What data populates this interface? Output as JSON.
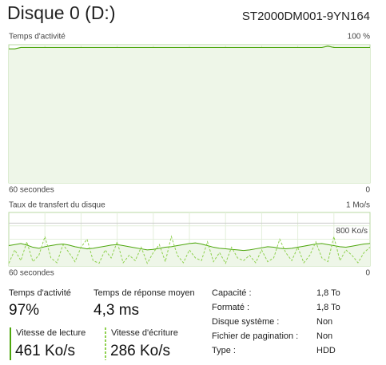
{
  "header": {
    "title": "Disque 0 (D:)",
    "model": "ST2000DM001-9YN164"
  },
  "activity_chart": {
    "type": "line",
    "label": "Temps d'activité",
    "max_label": "100 %",
    "x_label": "60 secondes",
    "x_end_label": "0",
    "ylim": [
      0,
      100
    ],
    "color": "#4da60c",
    "fill": "#eef6e8",
    "grid": true,
    "values": [
      97,
      97,
      98,
      98,
      98,
      98,
      98,
      98,
      98,
      98,
      98,
      98,
      98,
      98,
      98,
      98,
      98,
      98,
      98,
      98,
      98,
      98,
      98,
      98,
      98,
      98,
      98,
      98,
      98,
      98,
      98,
      98,
      98,
      98,
      98,
      98,
      98,
      98,
      98,
      98,
      98,
      98,
      98,
      98,
      98,
      98,
      98,
      98,
      98,
      98,
      98,
      98,
      98,
      99,
      98,
      98,
      98,
      98,
      98,
      98,
      98
    ]
  },
  "transfer_chart": {
    "type": "line",
    "label": "Taux de transfert du disque",
    "max_label": "1 Mo/s",
    "x_label": "60 secondes",
    "x_end_label": "0",
    "ylim": [
      0,
      1000
    ],
    "marker": {
      "value": 800,
      "label": "800 Ko/s"
    },
    "grid": true,
    "series": [
      {
        "name": "Vitesse de lecture",
        "color": "#4da60c",
        "values": [
          380,
          400,
          420,
          390,
          350,
          330,
          360,
          380,
          400,
          410,
          390,
          360,
          340,
          320,
          330,
          350,
          370,
          390,
          400,
          380,
          360,
          340,
          320,
          300,
          310,
          330,
          350,
          360,
          380,
          400,
          420,
          430,
          410,
          380,
          350,
          330,
          320,
          310,
          300,
          290,
          300,
          320,
          340,
          360,
          350,
          330,
          320,
          330,
          350,
          370,
          390,
          410,
          420,
          400,
          380,
          360,
          350,
          370,
          390,
          410,
          420
        ]
      },
      {
        "name": "Vitesse d'écriture",
        "color": "#8fd14f",
        "values": [
          50,
          300,
          100,
          450,
          80,
          200,
          550,
          150,
          60,
          400,
          250,
          80,
          350,
          500,
          100,
          50,
          300,
          150,
          450,
          60,
          200,
          100,
          350,
          50,
          250,
          400,
          80,
          550,
          200,
          60,
          300,
          150,
          100,
          450,
          80,
          250,
          50,
          350,
          150,
          100,
          200,
          60,
          300,
          80,
          150,
          500,
          250,
          100,
          350,
          60,
          200,
          450,
          150,
          80,
          550,
          100,
          300,
          200,
          60,
          250,
          350
        ]
      }
    ]
  },
  "stats": {
    "active_time": {
      "label": "Temps d'activité",
      "value": "97%"
    },
    "response_time": {
      "label": "Temps de réponse moyen",
      "value": "4,3 ms"
    },
    "read_speed": "461 Ko/s",
    "write_speed": "286 Ko/s",
    "properties": [
      [
        "Capacité :",
        "1,8 To"
      ],
      [
        "Formaté :",
        "1,8 To"
      ],
      [
        "Disque système :",
        "Non"
      ],
      [
        "Fichier de pagination :",
        "Non"
      ],
      [
        "Type :",
        "HDD"
      ]
    ]
  }
}
